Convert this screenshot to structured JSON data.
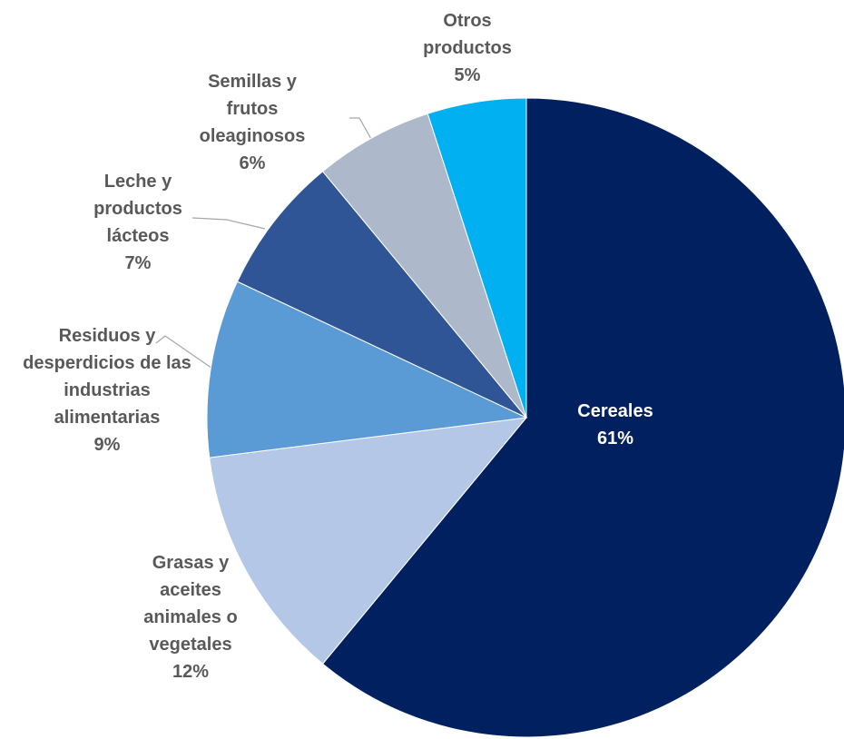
{
  "chart_data": {
    "type": "pie",
    "categories": [
      "Cereales",
      "Grasas y aceites animales o vegetales",
      "Residuos y desperdicios de las industrias alimentarias",
      "Leche y productos lácteos",
      "Semillas y frutos oleaginosos",
      "Otros productos"
    ],
    "values": [
      61,
      12,
      9,
      7,
      6,
      5
    ],
    "value_labels": [
      "61%",
      "12%",
      "9%",
      "7%",
      "6%",
      "5%"
    ],
    "colors": [
      "#002060",
      "#b4c7e7",
      "#5b9bd5",
      "#2f5597",
      "#adb9ca",
      "#00b0f0"
    ]
  }
}
